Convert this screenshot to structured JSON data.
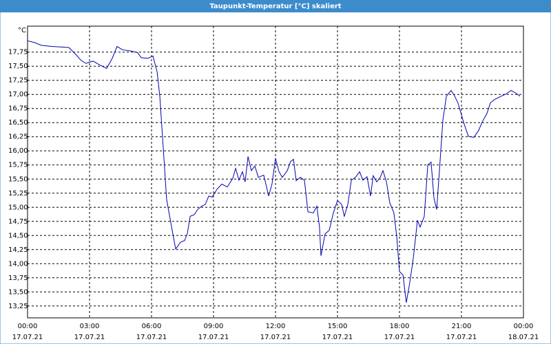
{
  "chart_data": {
    "type": "line",
    "title": "Taupunkt-Temperatur [°C] skaliert",
    "y_unit": "°C",
    "x": [
      0,
      0.33,
      0.67,
      1.17,
      1.67,
      2,
      2.33,
      2.6,
      2.83,
      3.17,
      3.5,
      3.83,
      4.1,
      4.33,
      4.6,
      5,
      5.33,
      5.5,
      5.83,
      6.07,
      6.27,
      6.4,
      6.6,
      6.73,
      7,
      7.17,
      7.4,
      7.6,
      7.73,
      7.87,
      8.07,
      8.23,
      8.43,
      8.6,
      8.77,
      8.93,
      9.17,
      9.4,
      9.67,
      9.93,
      10.07,
      10.23,
      10.4,
      10.53,
      10.67,
      10.83,
      11,
      11.17,
      11.43,
      11.67,
      11.83,
      12,
      12.17,
      12.33,
      12.57,
      12.73,
      12.87,
      13,
      13.2,
      13.4,
      13.57,
      13.83,
      14,
      14.13,
      14.2,
      14.4,
      14.6,
      14.8,
      15,
      15.2,
      15.33,
      15.5,
      15.67,
      15.87,
      16.07,
      16.23,
      16.43,
      16.6,
      16.73,
      16.9,
      17.07,
      17.2,
      17.37,
      17.53,
      17.73,
      17.87,
      18,
      18.17,
      18.33,
      18.5,
      18.67,
      18.87,
      19,
      19.2,
      19.37,
      19.53,
      19.67,
      19.8,
      19.93,
      20.1,
      20.27,
      20.5,
      20.67,
      20.83,
      21.1,
      21.33,
      21.6,
      21.83,
      22,
      22.23,
      22.4,
      22.6,
      22.93,
      23.17,
      23.4,
      23.6,
      23.83
    ],
    "series": [
      {
        "name": "Taupunkt-Temperatur",
        "color": "#0000b0",
        "values": [
          17.95,
          17.92,
          17.87,
          17.85,
          17.84,
          17.83,
          17.71,
          17.6,
          17.55,
          17.59,
          17.52,
          17.46,
          17.64,
          17.85,
          17.79,
          17.77,
          17.74,
          17.65,
          17.64,
          17.68,
          17.4,
          16.97,
          15.87,
          15.14,
          14.59,
          14.26,
          14.38,
          14.41,
          14.53,
          14.84,
          14.87,
          14.96,
          15.02,
          15.05,
          15.2,
          15.18,
          15.32,
          15.41,
          15.36,
          15.51,
          15.69,
          15.48,
          15.63,
          15.45,
          15.9,
          15.65,
          15.73,
          15.53,
          15.57,
          15.2,
          15.41,
          15.87,
          15.63,
          15.53,
          15.65,
          15.81,
          15.85,
          15.47,
          15.53,
          15.48,
          14.92,
          14.9,
          15.02,
          14.65,
          14.14,
          14.53,
          14.59,
          14.9,
          15.12,
          15.05,
          14.84,
          15.05,
          15.48,
          15.53,
          15.63,
          15.48,
          15.54,
          15.2,
          15.56,
          15.45,
          15.53,
          15.65,
          15.45,
          15.08,
          14.9,
          14.47,
          13.86,
          13.8,
          13.31,
          13.67,
          14.1,
          14.77,
          14.65,
          14.84,
          15.75,
          15.8,
          15.16,
          14.96,
          15.63,
          16.54,
          16.97,
          17.07,
          16.97,
          16.85,
          16.51,
          16.26,
          16.24,
          16.36,
          16.51,
          16.66,
          16.85,
          16.91,
          16.97,
          17.01,
          17.07,
          17.03,
          16.97
        ]
      }
    ],
    "xlim": [
      0,
      24
    ],
    "xticks": [
      {
        "value": 0,
        "label": "00:00"
      },
      {
        "value": 3,
        "label": "03:00"
      },
      {
        "value": 6,
        "label": "06:00"
      },
      {
        "value": 9,
        "label": "09:00"
      },
      {
        "value": 12,
        "label": "12:00"
      },
      {
        "value": 15,
        "label": "15:00"
      },
      {
        "value": 18,
        "label": "18:00"
      },
      {
        "value": 21,
        "label": "21:00"
      },
      {
        "value": 24,
        "label": "00:00"
      }
    ],
    "xtick_dates": [
      "17.07.21",
      "17.07.21",
      "17.07.21",
      "17.07.21",
      "17.07.21",
      "17.07.21",
      "17.07.21",
      "17.07.21",
      "18.07.21"
    ],
    "ylim": [
      13.04,
      18.21
    ],
    "yticks": [
      {
        "value": 13.25,
        "label": "13,25"
      },
      {
        "value": 13.5,
        "label": "13,50"
      },
      {
        "value": 13.75,
        "label": "13,75"
      },
      {
        "value": 14,
        "label": "14,00"
      },
      {
        "value": 14.25,
        "label": "14,25"
      },
      {
        "value": 14.5,
        "label": "14,50"
      },
      {
        "value": 14.75,
        "label": "14,75"
      },
      {
        "value": 15,
        "label": "15,00"
      },
      {
        "value": 15.25,
        "label": "15,25"
      },
      {
        "value": 15.5,
        "label": "15,50"
      },
      {
        "value": 15.75,
        "label": "15,75"
      },
      {
        "value": 16,
        "label": "16,00"
      },
      {
        "value": 16.25,
        "label": "16,25"
      },
      {
        "value": 16.5,
        "label": "16,50"
      },
      {
        "value": 16.75,
        "label": "16,75"
      },
      {
        "value": 17,
        "label": "17,00"
      },
      {
        "value": 17.25,
        "label": "17,25"
      },
      {
        "value": 17.5,
        "label": "17,50"
      },
      {
        "value": 17.75,
        "label": "17,75"
      }
    ],
    "grid": true
  }
}
